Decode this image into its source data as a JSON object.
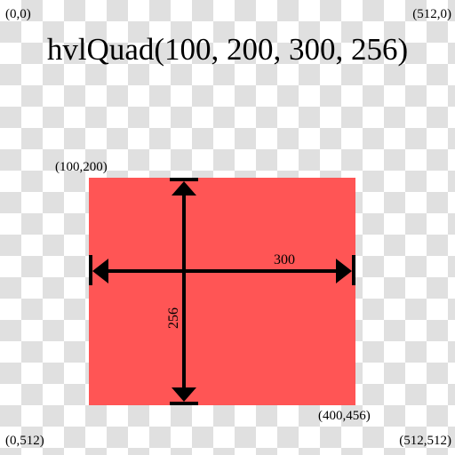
{
  "title": "hvlQuad(100, 200, 300, 256)",
  "corners": {
    "top_left": "(0,0)",
    "top_right": "(512,0)",
    "bottom_left": "(0,512)",
    "bottom_right": "(512,512)"
  },
  "quad": {
    "top_left_label": "(100,200)",
    "bottom_right_label": "(400,456)",
    "width_label": "300",
    "height_label": "256"
  },
  "colors": {
    "fill": "#ff5555",
    "checker_light": "#ffffff",
    "checker_dark": "#e0e0e0",
    "stroke": "#000000"
  }
}
